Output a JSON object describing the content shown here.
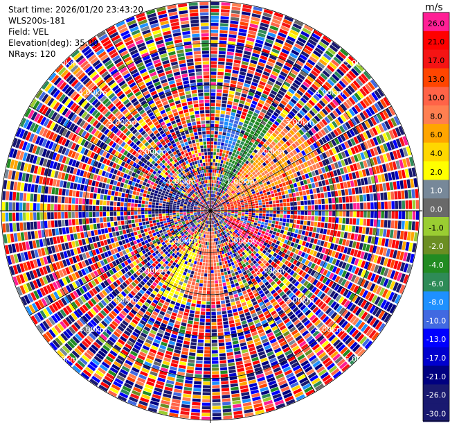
{
  "header": {
    "start_time": "Start time: 2026/01/20 23:43:20",
    "instrument": "WLS200s-181",
    "field": "Field: VEL",
    "elevation": "Elevation(deg): 35.00",
    "nrays": "NRays: 120"
  },
  "colorbar": {
    "unit": "m/s",
    "bands": [
      {
        "label": "26.0",
        "color": "#ff1f95"
      },
      {
        "label": "21.0",
        "color": "#ff0000"
      },
      {
        "label": "17.0",
        "color": "#f51414"
      },
      {
        "label": "13.0",
        "color": "#ff4500"
      },
      {
        "label": "10.0",
        "color": "#ff6347"
      },
      {
        "label": "8.0",
        "color": "#ff7f50"
      },
      {
        "label": "6.0",
        "color": "#ffa500"
      },
      {
        "label": "4.0",
        "color": "#ffd700"
      },
      {
        "label": "2.0",
        "color": "#ffff00"
      },
      {
        "label": "1.0",
        "color": "#778899"
      },
      {
        "label": "0.0",
        "color": "#696969"
      },
      {
        "label": "-1.0",
        "color": "#9acd32"
      },
      {
        "label": "-2.0",
        "color": "#6b8e23"
      },
      {
        "label": "-4.0",
        "color": "#228b22"
      },
      {
        "label": "-6.0",
        "color": "#2e8b57"
      },
      {
        "label": "-8.0",
        "color": "#1e90ff"
      },
      {
        "label": "-10.0",
        "color": "#4169e1"
      },
      {
        "label": "-13.0",
        "color": "#0000ff"
      },
      {
        "label": "-17.0",
        "color": "#0000cd"
      },
      {
        "label": "-21.0",
        "color": "#000080"
      },
      {
        "label": "-26.0",
        "color": "#191970"
      },
      {
        "label": "-30.0",
        "color": "#191970"
      }
    ]
  },
  "chart_data": {
    "type": "heatmap",
    "projection": "polar-ppi",
    "field": "VEL",
    "units": "m/s",
    "n_rays": 120,
    "max_range_km": 5.0,
    "range_rings_km": [
      1.0,
      2.0,
      3.0,
      4.0,
      5.0
    ],
    "ring_labels": [
      "1.00km",
      "2.00km",
      "3.00km",
      "4.00km",
      "5.00km"
    ],
    "ring_label_azimuths_deg": [
      45,
      135,
      225,
      315
    ],
    "radial_lines_deg": [
      0,
      30,
      60,
      90,
      120,
      150,
      180,
      210,
      240,
      270,
      300,
      330
    ],
    "color_levels": [
      -30,
      -26,
      -21,
      -17,
      -13,
      -10,
      -8,
      -6,
      -4,
      -2,
      -1,
      0,
      1,
      2,
      4,
      6,
      8,
      10,
      13,
      17,
      21,
      26
    ],
    "coherent_sectors": [
      {
        "az_from": 20,
        "az_to": 35,
        "range_km": [
          0.6,
          2.6
        ],
        "value": -4.0,
        "note_color": "green"
      },
      {
        "az_from": 5,
        "az_to": 20,
        "range_km": [
          1.5,
          2.3
        ],
        "value": -8.0,
        "note_color": "blue"
      },
      {
        "az_from": 38,
        "az_to": 68,
        "range_km": [
          0.6,
          2.8
        ],
        "value": 8.0
      },
      {
        "az_from": 60,
        "az_to": 88,
        "range_km": [
          0.3,
          1.8
        ],
        "value": 17.0
      },
      {
        "az_from": 110,
        "az_to": 130,
        "range_km": [
          0.4,
          1.6
        ],
        "value": 26.0
      },
      {
        "az_from": 170,
        "az_to": 198,
        "range_km": [
          0.5,
          2.2
        ],
        "value": 10.0
      },
      {
        "az_from": 196,
        "az_to": 212,
        "range_km": [
          0.6,
          2.3
        ],
        "value": 3.0
      },
      {
        "az_from": 270,
        "az_to": 300,
        "range_km": [
          0.3,
          1.4
        ],
        "value": -21.0
      }
    ],
    "outer_noise": "random velocities across full scale beyond ~2.5 km"
  }
}
